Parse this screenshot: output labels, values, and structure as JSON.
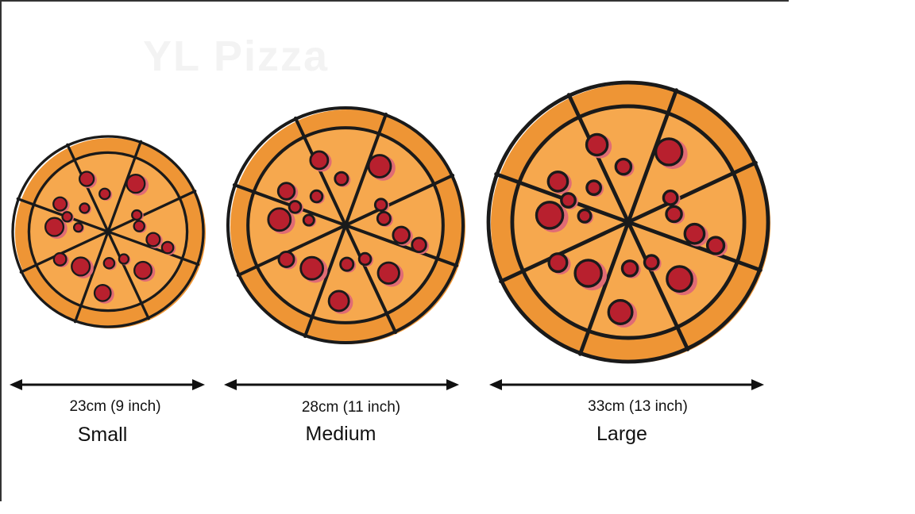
{
  "watermark": "YL Pizza",
  "colors": {
    "crust": "#ee9535",
    "sauce": "#f6a84e",
    "pepperoni": "#b8202e",
    "pepperoni_shadow": "#e06b74",
    "outline": "#1a1a1a"
  },
  "pizzas": [
    {
      "id": "small",
      "name": "Small",
      "dimension": "23cm (9 inch)",
      "icon": "pizza-icon",
      "slices": 8
    },
    {
      "id": "medium",
      "name": "Medium",
      "dimension": "28cm (11 inch)",
      "icon": "pizza-icon",
      "slices": 8
    },
    {
      "id": "large",
      "name": "Large",
      "dimension": "33cm (13 inch)",
      "icon": "pizza-icon",
      "slices": 8
    }
  ]
}
